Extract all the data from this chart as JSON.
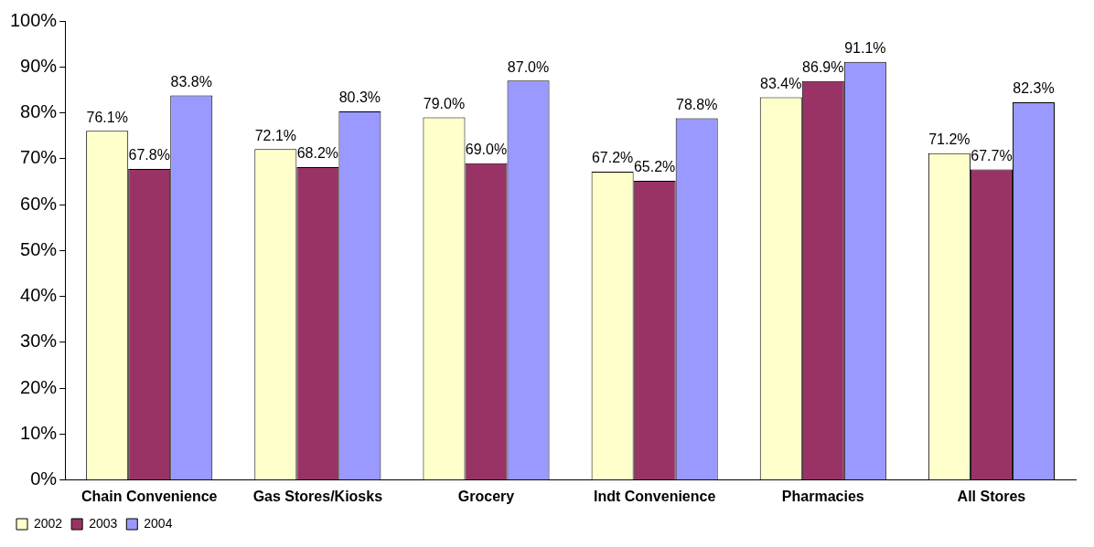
{
  "chart_data": {
    "type": "bar",
    "categories": [
      "Chain Convenience",
      "Gas Stores/Kiosks",
      "Grocery",
      "Indt Convenience",
      "Pharmacies",
      "All Stores"
    ],
    "series": [
      {
        "name": "2002",
        "color": "#ffffcc",
        "values": [
          76.1,
          72.1,
          79.0,
          67.2,
          83.4,
          71.2
        ],
        "value_labels": [
          "76.1%",
          "72.1%",
          "79.0%",
          "67.2%",
          "83.4%",
          "71.2%"
        ]
      },
      {
        "name": "2003",
        "color": "#993366",
        "values": [
          67.8,
          68.2,
          69.0,
          65.2,
          86.9,
          67.7
        ],
        "value_labels": [
          "67.8%",
          "68.2%",
          "69.0%",
          "65.2%",
          "86.9%",
          "67.7%"
        ]
      },
      {
        "name": "2004",
        "color": "#9999ff",
        "values": [
          83.8,
          80.3,
          87.0,
          78.8,
          91.1,
          82.3
        ],
        "value_labels": [
          "83.8%",
          "80.3%",
          "87.0%",
          "78.8%",
          "91.1%",
          "82.3%"
        ]
      }
    ],
    "ylim": [
      0,
      100
    ],
    "yticks": [
      {
        "value": 0,
        "label": "0%"
      },
      {
        "value": 10,
        "label": "10%"
      },
      {
        "value": 20,
        "label": "20%"
      },
      {
        "value": 30,
        "label": "30%"
      },
      {
        "value": 40,
        "label": "40%"
      },
      {
        "value": 50,
        "label": "50%"
      },
      {
        "value": 60,
        "label": "60%"
      },
      {
        "value": 70,
        "label": "70%"
      },
      {
        "value": 80,
        "label": "80%"
      },
      {
        "value": 90,
        "label": "90%"
      },
      {
        "value": 100,
        "label": "100%"
      }
    ],
    "grid": false,
    "legend": "bottom left"
  }
}
